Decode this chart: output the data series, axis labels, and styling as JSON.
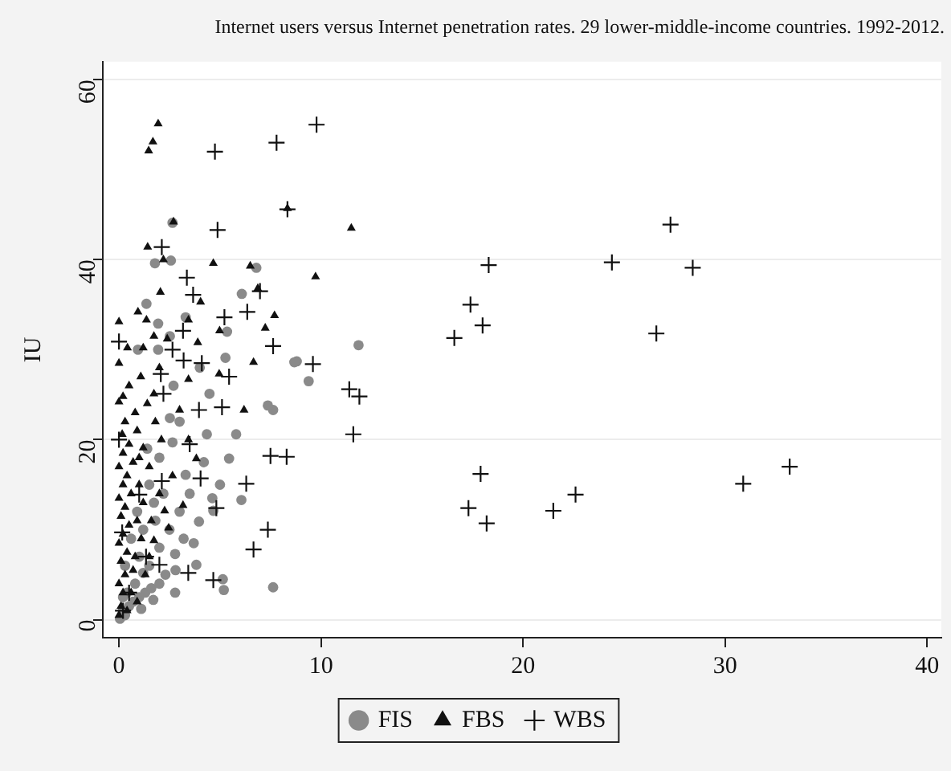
{
  "chart_data": {
    "type": "scatter",
    "title": "Internet users versus Internet penetration rates. 29 lower-middle-income countries. 1992-2012.",
    "ylabel": "IU",
    "xlim": [
      -0.8,
      40.7
    ],
    "ylim": [
      -2,
      62
    ],
    "xticks": [
      0,
      10,
      20,
      30,
      40
    ],
    "yticks": [
      0,
      20,
      40,
      60
    ],
    "grid": "y",
    "legend": "bottom",
    "series": [
      {
        "name": "FIS",
        "color": "#8a8a8a",
        "marker": "circle",
        "x": [
          2.65,
          1.78,
          2.57,
          6.8,
          6.08,
          1.36,
          1.94,
          3.3,
          5.35,
          2.52,
          0.94,
          1.94,
          11.86,
          8.8,
          9.39,
          8.68,
          5.27,
          4.48,
          7.63,
          7.37,
          5.8,
          5.45,
          4.62,
          6.06,
          4.67,
          3.96,
          3.7,
          5.14,
          5.19,
          7.63,
          2.78,
          3.83,
          2.65,
          4.35,
          3.3,
          2.52,
          1.73,
          2.78,
          1.2,
          0.2,
          0.3,
          0.5,
          0.7,
          1,
          1.3,
          1.6,
          2,
          2.3,
          0.4,
          0.8,
          1.5,
          2,
          2.5,
          1,
          1.8,
          2.2,
          3,
          0.6,
          1.2,
          1.5,
          2,
          3.5,
          3,
          2.7,
          4,
          0.3,
          0.9,
          1.4,
          3.2,
          2.8,
          4.2,
          5,
          0.2,
          0.05,
          1.1,
          1.7
        ],
        "values": [
          44.1,
          39.6,
          39.9,
          39.1,
          36.2,
          35.1,
          32.9,
          33.6,
          32,
          31.5,
          30,
          30,
          30.5,
          28.7,
          26.5,
          28.6,
          29.1,
          25.1,
          23.3,
          23.8,
          20.6,
          17.9,
          13.5,
          13.3,
          12.1,
          10.9,
          8.5,
          4.5,
          3.3,
          3.6,
          3,
          6.1,
          19.7,
          20.6,
          16.1,
          22.4,
          13,
          7.3,
          5.2,
          1,
          0.5,
          1.5,
          2,
          2.5,
          3,
          3.5,
          4,
          5,
          3,
          4,
          6,
          8,
          10,
          7,
          11,
          14,
          12,
          9,
          10,
          15,
          18,
          14,
          22,
          26,
          28,
          6,
          12,
          19,
          9,
          5.5,
          17.5,
          15,
          2.5,
          0.1,
          1.2,
          2.2
        ]
      },
      {
        "name": "FBS",
        "color": "#111111",
        "marker": "triangle",
        "x": [
          1.94,
          1.68,
          1.47,
          2.7,
          1.42,
          2.2,
          4.67,
          6.5,
          6.87,
          8.34,
          11.5,
          9.73,
          2.05,
          0.94,
          4.04,
          3.44,
          0,
          1.36,
          4.98,
          7.24,
          7.7,
          1.73,
          2.39,
          3.9,
          0.42,
          1.2,
          0,
          4.96,
          6.66,
          6.19,
          3,
          0,
          1.08,
          3.44,
          1.73,
          3.44,
          3.83,
          2.65,
          3.17,
          2.26,
          2.46,
          1.2,
          0.16,
          1.73,
          0,
          0.1,
          0.2,
          0,
          0.3,
          0.1,
          0.4,
          0,
          0.2,
          0.5,
          0.1,
          0.3,
          0,
          0.6,
          0.2,
          0.4,
          0,
          0.7,
          0.2,
          0.5,
          0.9,
          0.3,
          0.8,
          1,
          1.2,
          0.9,
          1.1,
          0.8,
          1.3,
          0.6,
          0.9,
          1.5,
          1.8,
          2.1,
          1.4,
          0.5,
          2,
          1.6,
          2,
          0.4,
          0.7,
          1,
          0.2,
          1.5
        ],
        "values": [
          55.1,
          53.1,
          52.1,
          44.2,
          41.4,
          40,
          39.6,
          39.3,
          36.8,
          45.7,
          43.5,
          38.1,
          36.4,
          34.2,
          35.3,
          33.3,
          33.1,
          33.3,
          32.1,
          32.4,
          33.8,
          31.5,
          31.2,
          30.8,
          30.2,
          30.2,
          28.5,
          27.3,
          28.6,
          23.3,
          23.3,
          24.2,
          27,
          26.7,
          25.1,
          20,
          17.9,
          16,
          12.7,
          12.1,
          10.2,
          19.1,
          20.6,
          8.8,
          0.5,
          1.5,
          3,
          4,
          5,
          6.5,
          7.5,
          8.5,
          9.5,
          10.5,
          11.5,
          12.5,
          13.5,
          14,
          15,
          16,
          17,
          17.5,
          18.5,
          19.5,
          21,
          22,
          23,
          15,
          13,
          11,
          9,
          7,
          5,
          3,
          2,
          17,
          22,
          20,
          24,
          26,
          28,
          11,
          14,
          1,
          5.5,
          18,
          24.8,
          7
        ]
      },
      {
        "name": "WBS",
        "color": "#111111",
        "marker": "cross",
        "x": [
          9.78,
          7.8,
          4.75,
          8.34,
          4.88,
          2.12,
          3.36,
          3.67,
          6.98,
          5.22,
          6.35,
          3.17,
          0,
          7.63,
          2.65,
          18.3,
          24.4,
          17.4,
          18,
          16.6,
          9.6,
          11.4,
          11.9,
          11.6,
          8.3,
          17.9,
          17.3,
          18.2,
          21.5,
          22.6,
          27.3,
          28.4,
          26.6,
          30.9,
          33.2,
          2.07,
          5.45,
          4.1,
          3.2,
          5.1,
          3.96,
          2.2,
          0,
          3.5,
          7.5,
          6.3,
          4.04,
          2.12,
          4.82,
          1,
          7.37,
          6.66,
          2,
          3.43,
          4.67,
          0.16,
          1.34,
          0.5,
          0.2
        ],
        "values": [
          55,
          53,
          52,
          45.6,
          43.3,
          41.4,
          38,
          36.1,
          36.5,
          33.6,
          34.2,
          32.1,
          30.9,
          30.4,
          30,
          39.4,
          39.7,
          35,
          32.7,
          31.3,
          28.4,
          25.6,
          24.8,
          20.6,
          18.1,
          16.2,
          12.4,
          10.7,
          12.1,
          13.9,
          43.9,
          39.1,
          31.8,
          15.1,
          17,
          27.3,
          27,
          28.5,
          28.8,
          23.6,
          23.3,
          25.1,
          20,
          19.5,
          18.2,
          15.1,
          15.7,
          15.4,
          12.4,
          13.9,
          10,
          7.8,
          6.1,
          5.2,
          4.4,
          9.7,
          7,
          3,
          1
        ]
      }
    ]
  }
}
